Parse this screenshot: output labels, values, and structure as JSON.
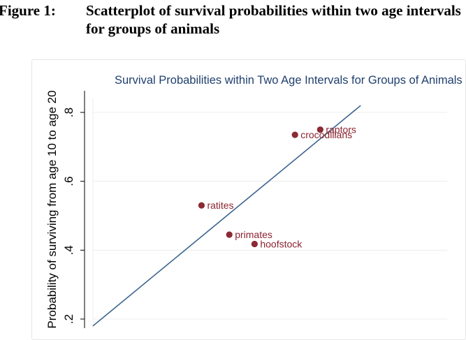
{
  "figure": {
    "label": "Figure 1:",
    "title": "Scatterplot of survival probabilities within two age intervals for groups of animals"
  },
  "colors": {
    "point": "#8b2a33",
    "point_label": "#8b2330",
    "fit_line": "#3f6690",
    "title": "#1f3f6e",
    "grid": "#ececec"
  },
  "chart_data": {
    "type": "scatter",
    "title": "Survival Probabilities within Two Age Intervals for Groups of Animals",
    "ylabel": "Probability of surviving from age 10 to age 20",
    "xlabel": "",
    "y_ticks": [
      ".2",
      ".4",
      ".6",
      ".8"
    ],
    "y_tick_values": [
      0.2,
      0.4,
      0.6,
      0.8
    ],
    "grid": true,
    "points": [
      {
        "label": "raptors",
        "x": 0.75,
        "y": 0.75
      },
      {
        "label": "crocodilians",
        "x": 0.7,
        "y": 0.735
      },
      {
        "label": "ratites",
        "x": 0.515,
        "y": 0.53
      },
      {
        "label": "primates",
        "x": 0.57,
        "y": 0.445
      },
      {
        "label": "hoofstock",
        "x": 0.62,
        "y": 0.418
      }
    ],
    "fit_line": {
      "type": "identity",
      "from": [
        0.3,
        0.18
      ],
      "to": [
        0.83,
        0.82
      ]
    }
  }
}
